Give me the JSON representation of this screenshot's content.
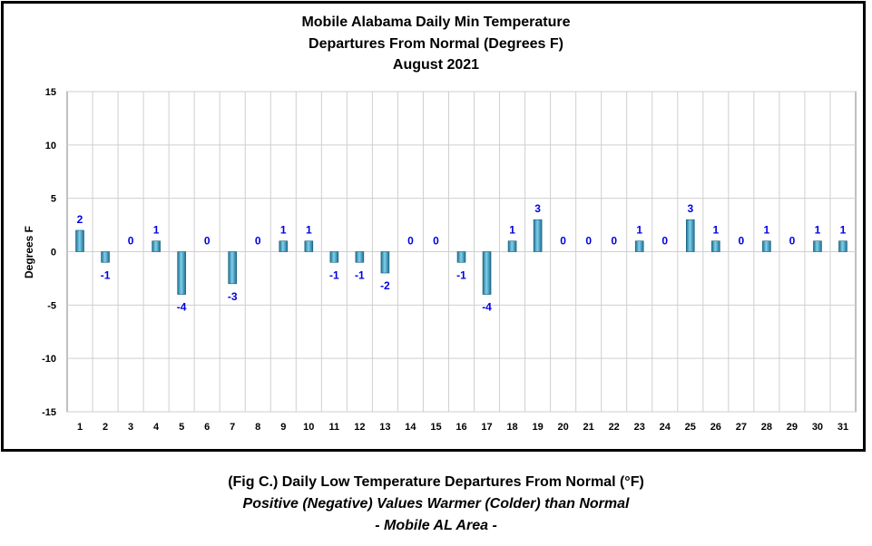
{
  "chart_data": {
    "type": "bar",
    "title": [
      "Mobile Alabama Daily Min Temperature",
      "Departures From Normal (Degrees F)",
      "August 2021"
    ],
    "xlabel": "",
    "ylabel": "Degrees F",
    "ylim": [
      -15,
      15
    ],
    "yticks": [
      15,
      10,
      5,
      0,
      -5,
      -10,
      -15
    ],
    "categories": [
      "1",
      "2",
      "3",
      "4",
      "5",
      "6",
      "7",
      "8",
      "9",
      "10",
      "11",
      "12",
      "13",
      "14",
      "15",
      "16",
      "17",
      "18",
      "19",
      "20",
      "21",
      "22",
      "23",
      "24",
      "25",
      "26",
      "27",
      "28",
      "29",
      "30",
      "31"
    ],
    "values": [
      2,
      -1,
      0,
      1,
      -4,
      0,
      -3,
      0,
      1,
      1,
      -1,
      -1,
      -2,
      0,
      0,
      -1,
      -4,
      1,
      3,
      0,
      0,
      0,
      1,
      0,
      3,
      1,
      0,
      1,
      0,
      1,
      1
    ],
    "grid": true,
    "bar_color": "#3a9fc4",
    "label_color": "#0000e0"
  },
  "caption": {
    "line1": "(Fig C.) Daily Low Temperature Departures From Normal (°F)",
    "line2": "Positive (Negative) Values Warmer (Colder) than Normal",
    "line3": "- Mobile AL Area -"
  }
}
